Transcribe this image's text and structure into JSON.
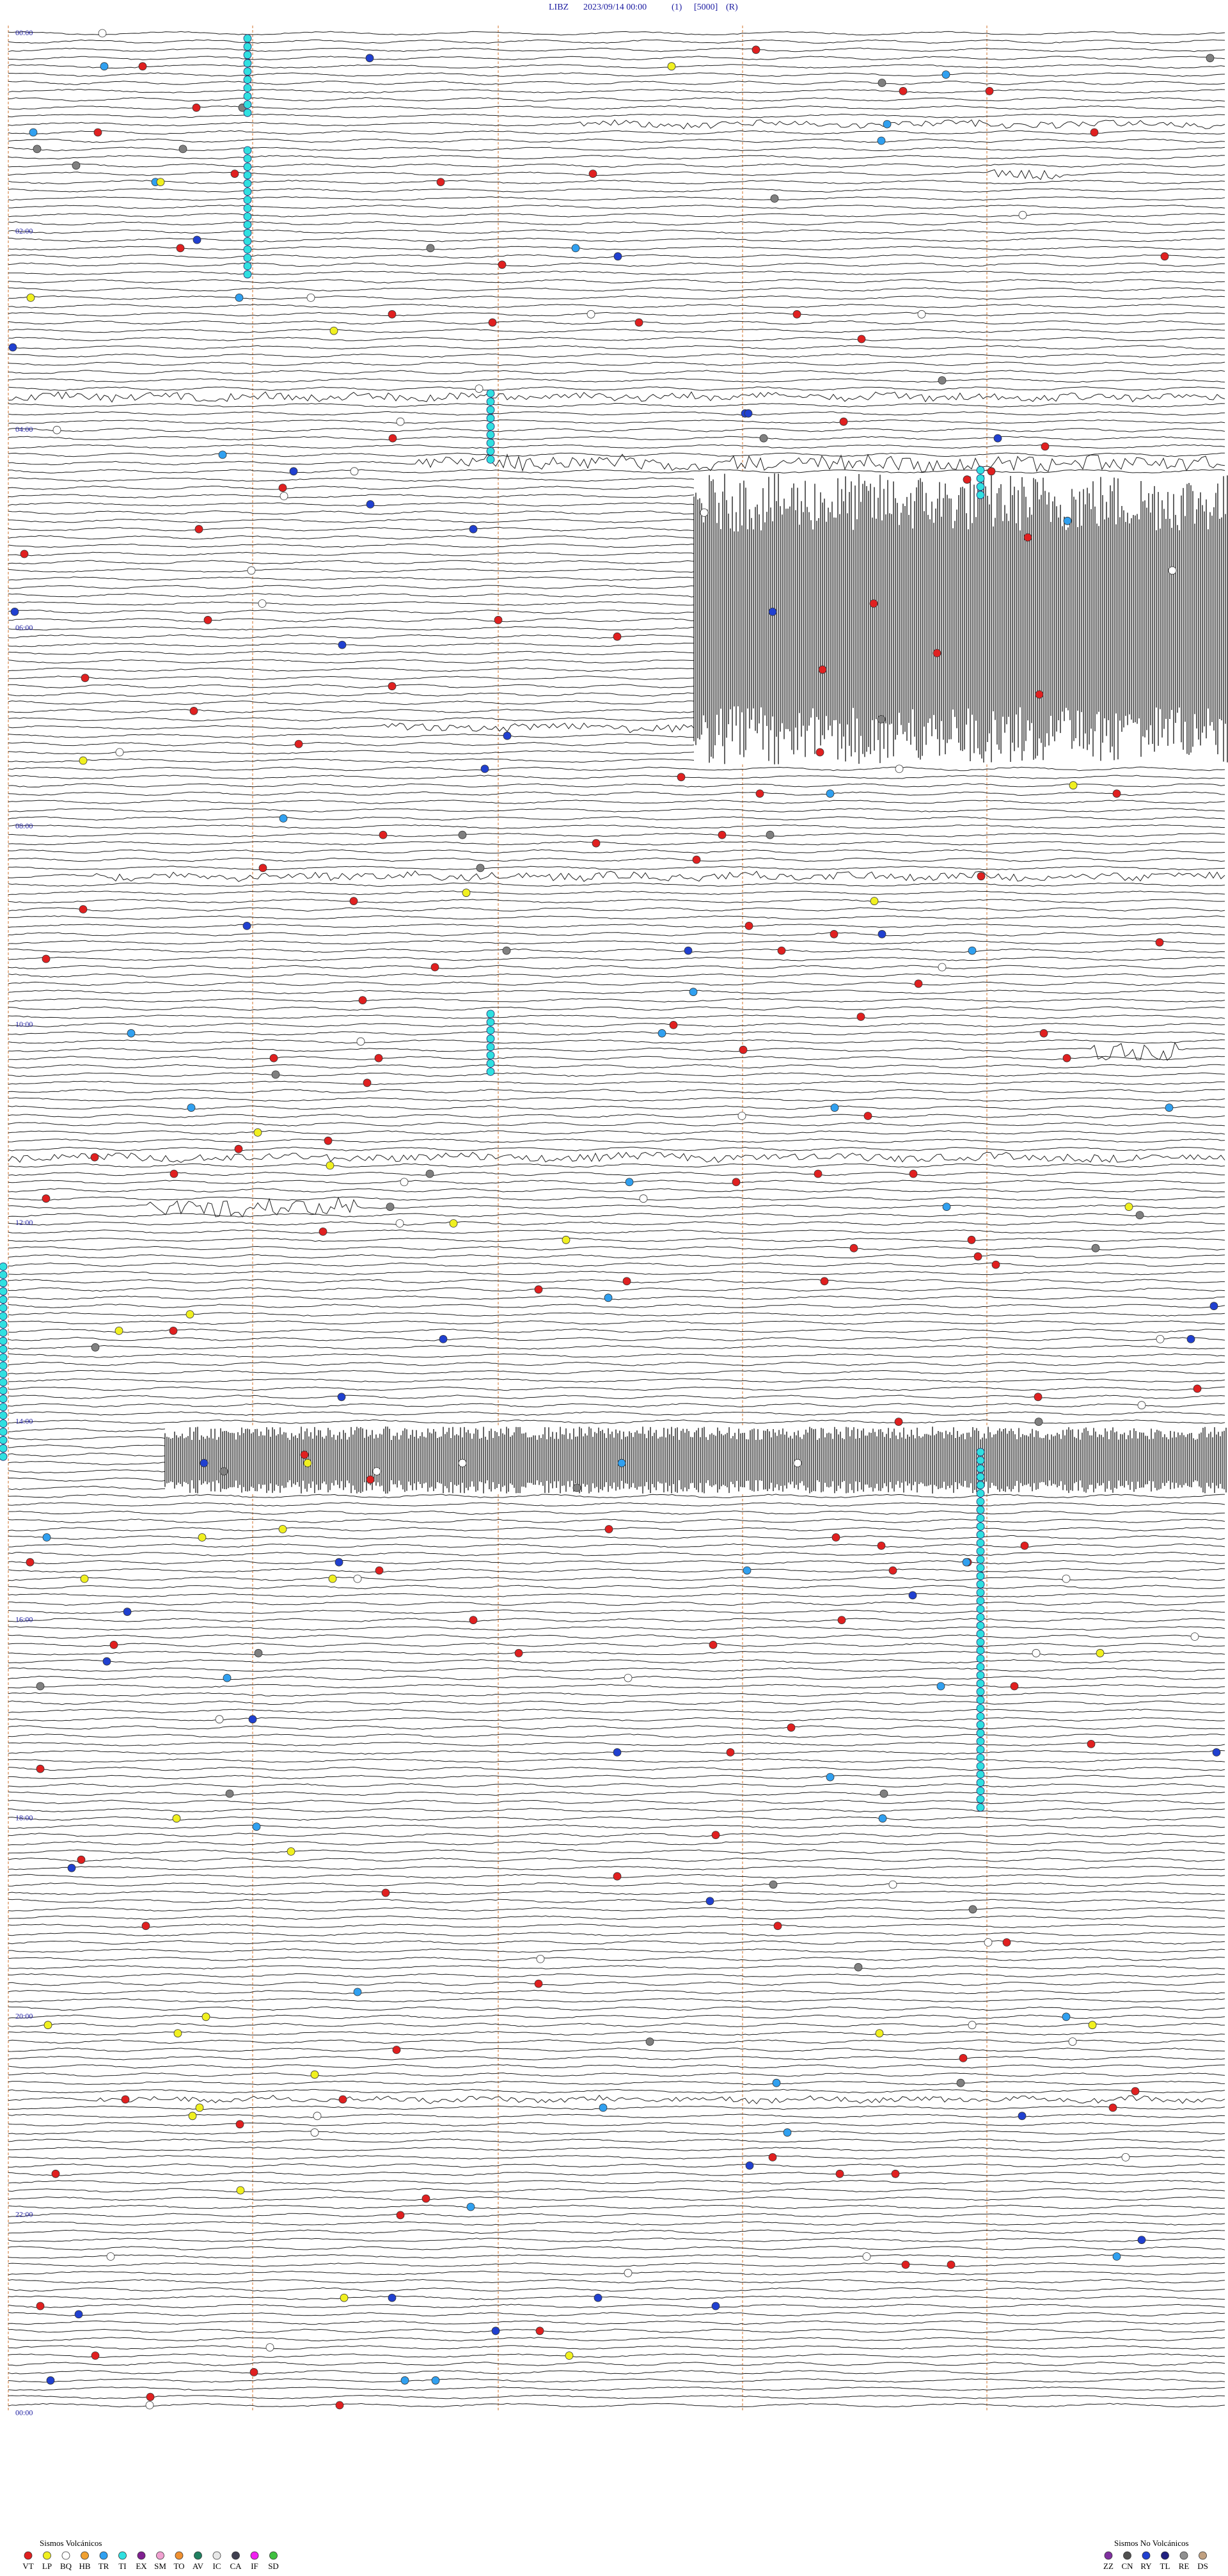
{
  "header": {
    "station": "LIBZ",
    "datetime": "2023/09/14 00:00",
    "component": "(1)",
    "scale": "[5000]",
    "mode": "(R)"
  },
  "time_labels": [
    "00:00",
    "02:00",
    "04:00",
    "06:00",
    "08:00",
    "10:00",
    "12:00",
    "14:00",
    "16:00",
    "18:00",
    "20:00",
    "22:00",
    "00:00"
  ],
  "legend_volcanic": {
    "title": "Sismos Volcánicos",
    "items": [
      {
        "code": "VT",
        "color": "#e02020"
      },
      {
        "code": "LP",
        "color": "#f0f020"
      },
      {
        "code": "BQ",
        "color": "#ffffff"
      },
      {
        "code": "HB",
        "color": "#f0a030"
      },
      {
        "code": "TR",
        "color": "#30a0f0"
      },
      {
        "code": "TI",
        "color": "#30e0e0"
      },
      {
        "code": "EX",
        "color": "#802090"
      },
      {
        "code": "SM",
        "color": "#f0a0d0"
      },
      {
        "code": "TO",
        "color": "#f09030"
      },
      {
        "code": "AV",
        "color": "#208060"
      },
      {
        "code": "IC",
        "color": "#e8e8e8"
      },
      {
        "code": "CA",
        "color": "#404050"
      },
      {
        "code": "IF",
        "color": "#f020f0"
      },
      {
        "code": "SD",
        "color": "#40c040"
      }
    ]
  },
  "legend_nonvolcanic": {
    "title": "Sismos No Volcánicos",
    "items": [
      {
        "code": "ZZ",
        "color": "#8030a0"
      },
      {
        "code": "CN",
        "color": "#505050"
      },
      {
        "code": "RY",
        "color": "#2040d0"
      },
      {
        "code": "TL",
        "color": "#202080"
      },
      {
        "code": "RE",
        "color": "#909090"
      },
      {
        "code": "DS",
        "color": "#c0a080"
      }
    ]
  }
}
